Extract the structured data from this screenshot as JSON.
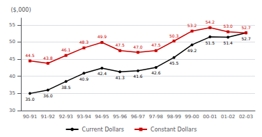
{
  "chart_data": {
    "type": "line",
    "ylabel": "($,000)",
    "categories": [
      "90-91",
      "91-92",
      "92-93",
      "93-94",
      "94-95",
      "95-96",
      "96-97",
      "97-98",
      "98-99",
      "99-00",
      "00-01",
      "01-02",
      "02-03"
    ],
    "series": [
      {
        "name": "Current Dollars",
        "color": "#000000",
        "marker": "circle",
        "values": [
          35.0,
          36.0,
          38.5,
          40.9,
          42.4,
          41.3,
          41.6,
          42.6,
          45.5,
          49.2,
          51.5,
          51.4,
          52.7
        ],
        "value_labels": [
          "35.0",
          "36.0",
          "38.5",
          "40.9",
          "42.4",
          "41.3",
          "41.6",
          "42.6",
          "45.5",
          "49.2",
          "51.5",
          "51.4",
          "52.7"
        ]
      },
      {
        "name": "Constant Dollars",
        "color": "#cc0000",
        "marker": "square",
        "values": [
          44.5,
          43.8,
          46.1,
          48.3,
          49.9,
          47.5,
          47.0,
          47.5,
          50.3,
          53.2,
          54.2,
          53.0,
          52.7
        ],
        "value_labels": [
          "44.5",
          "43.8",
          "46.1",
          "48.3",
          "49.9",
          "47.5",
          "47.0",
          "47.5",
          "50.3",
          "53.2",
          "54.2",
          "53.0",
          "52.7"
        ]
      }
    ],
    "ylim": [
      30,
      57
    ],
    "yticks": [
      30,
      35,
      40,
      45,
      50,
      55
    ],
    "grid": true,
    "legend": "bottom",
    "data_labels": true
  }
}
